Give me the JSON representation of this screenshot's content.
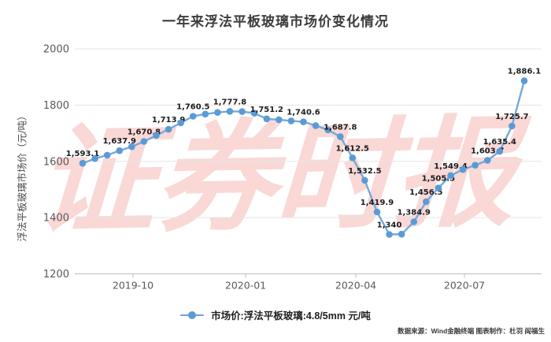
{
  "title": "一年来浮法平板玻璃市场价变化情况",
  "watermark": "证券时报",
  "source_credit": "数据来源：Wind金融终端 图表制作：杜羽 阎福生",
  "legend": {
    "label": "市场价:浮法平板玻璃:4.8/5mm 元/吨"
  },
  "colors": {
    "line": "#74a9dc",
    "dot": "#5b9bd5",
    "grid": "#e5e5e5",
    "axis": "#bcbcbc",
    "watermark": "#e8534a"
  },
  "chart_data": {
    "type": "line",
    "title": "一年来浮法平板玻璃市场价变化情况",
    "xlabel": "",
    "ylabel": "浮法平板玻璃市场价（元/吨）",
    "ylim": [
      1200,
      2000
    ],
    "yticks": [
      1200,
      1400,
      1600,
      1800,
      2000
    ],
    "xticks": [
      "2019-10",
      "2020-01",
      "2020-04",
      "2020-07"
    ],
    "grid": true,
    "legend_position": "bottom",
    "series": [
      {
        "name": "市场价:浮法平板玻璃:4.8/5mm 元/吨",
        "unit": "元/吨",
        "points": [
          {
            "v": 1593.1,
            "label": "1,593.1"
          },
          {
            "v": 1610
          },
          {
            "v": 1622
          },
          {
            "v": 1637.9,
            "label": "1,637.9"
          },
          {
            "v": 1652
          },
          {
            "v": 1670.8,
            "label": "1,670.8"
          },
          {
            "v": 1692
          },
          {
            "v": 1713.9,
            "label": "1,713.9"
          },
          {
            "v": 1737
          },
          {
            "v": 1760.5,
            "label": "1,760.5"
          },
          {
            "v": 1768
          },
          {
            "v": 1774
          },
          {
            "v": 1777.8,
            "label": "1,777.8"
          },
          {
            "v": 1777
          },
          {
            "v": 1771
          },
          {
            "v": 1751.2,
            "label": "1,751.2"
          },
          {
            "v": 1748
          },
          {
            "v": 1744
          },
          {
            "v": 1740.6,
            "label": "1,740.6"
          },
          {
            "v": 1727
          },
          {
            "v": 1712
          },
          {
            "v": 1687.8,
            "label": "1,687.8"
          },
          {
            "v": 1612.5,
            "label": "1,612.5"
          },
          {
            "v": 1532.5,
            "label": "1,532.5"
          },
          {
            "v": 1419.9,
            "label": "1,419.9"
          },
          {
            "v": 1340,
            "label": "1,340"
          },
          {
            "v": 1341
          },
          {
            "v": 1384.9,
            "label": "1,384.9"
          },
          {
            "v": 1456.5,
            "label": "1,456.5"
          },
          {
            "v": 1505.5,
            "label": "1,505.5"
          },
          {
            "v": 1549.4,
            "label": "1,549.4"
          },
          {
            "v": 1571
          },
          {
            "v": 1586
          },
          {
            "v": 1603.7,
            "label": "1,603.7"
          },
          {
            "v": 1635.4,
            "label": "1,635.4"
          },
          {
            "v": 1725.7,
            "label": "1,725.7"
          },
          {
            "v": 1886.1,
            "label": "1,886.1"
          }
        ]
      }
    ]
  }
}
